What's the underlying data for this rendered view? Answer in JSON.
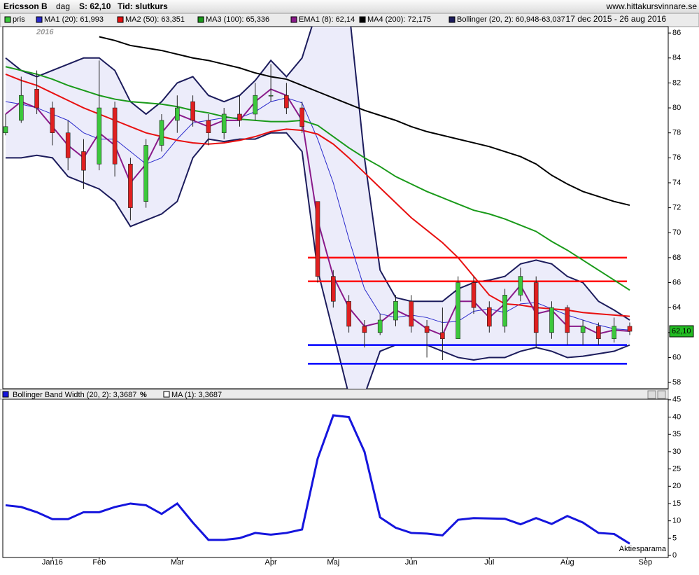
{
  "header": {
    "title": "Ericsson B",
    "period": "dag",
    "last": "S: 62,10",
    "price_type": "Tid: slutkurs",
    "date_range": "17 dec 2015 - 26 aug 2016",
    "source": "www.hittakursvinnare.se",
    "year_label": "2016"
  },
  "chart_data": [
    {
      "type": "candlestick",
      "categories": [
        null,
        null,
        null,
        "Jan16",
        null,
        null,
        "Feb",
        null,
        null,
        null,
        null,
        "Mar",
        null,
        null,
        null,
        null,
        null,
        "Apr",
        null,
        null,
        null,
        "Maj",
        null,
        null,
        null,
        null,
        "Jun",
        null,
        null,
        null,
        null,
        "Jul",
        null,
        null,
        null,
        null,
        "Aug",
        null,
        null,
        null,
        null,
        "Sep"
      ],
      "candles": {
        "name": "pris",
        "color": "#3cc83c",
        "down_color": "#e02020",
        "open": [
          78.0,
          79,
          81.5,
          80,
          78,
          76.5,
          75.5,
          80,
          75.5,
          72.5,
          77,
          79,
          80.5,
          79,
          78,
          79.5,
          79.5,
          81,
          81,
          80,
          72.5,
          66.5,
          64.5,
          62.5,
          62,
          63,
          64.5,
          62.5,
          62,
          61.5,
          66,
          64,
          62.5,
          65,
          66,
          62,
          64,
          62,
          62.5,
          61.5,
          62.5,
          null
        ],
        "high": [
          79.5,
          82.5,
          83,
          80.5,
          79,
          77.5,
          83.8,
          80.5,
          76,
          77.5,
          79.5,
          81,
          81,
          79.5,
          80,
          81,
          82,
          83.5,
          82,
          80.5,
          72.5,
          67,
          65,
          63,
          63.5,
          65,
          65,
          63,
          64,
          66.5,
          66.5,
          64.5,
          65.5,
          67.2,
          66.5,
          64.5,
          64.2,
          63,
          62.8,
          63.2,
          62.8,
          null
        ],
        "low": [
          77.8,
          78.8,
          79.5,
          77,
          75,
          73.5,
          75,
          74.5,
          71,
          72,
          76.5,
          78,
          78.5,
          77,
          77.5,
          78.5,
          79,
          80.5,
          79.5,
          78,
          66,
          64,
          62,
          60.8,
          61.8,
          62.5,
          62,
          60,
          59.8,
          61.5,
          63.5,
          62,
          62,
          64.5,
          60.8,
          61.5,
          61,
          61,
          61,
          61.2,
          61.8,
          null
        ],
        "close": [
          78.5,
          81,
          80,
          78,
          76,
          75,
          80,
          75.5,
          72,
          77,
          79,
          80,
          79,
          78,
          79.5,
          79,
          81,
          81,
          80,
          78.5,
          66.5,
          64.5,
          62.5,
          62,
          63,
          64.5,
          62.5,
          62,
          61.5,
          66,
          64,
          62.5,
          65,
          66.5,
          62,
          64,
          62,
          62.5,
          61.5,
          62.5,
          62.1,
          null
        ]
      },
      "series": [
        {
          "name": "MA1 (20): 61,993",
          "color": "#2a2acc",
          "values": [
            80.5,
            80.3,
            80.0,
            79.5,
            79,
            78,
            77.5,
            77.5,
            76.5,
            75.5,
            76,
            77.5,
            78.8,
            79,
            79.2,
            79.2,
            79.7,
            80.5,
            80.8,
            80.4,
            77.5,
            74,
            69.5,
            65.5,
            63.5,
            63.2,
            63.4,
            63.2,
            62.8,
            62.9,
            63.7,
            63.9,
            63.6,
            64.3,
            64.4,
            63.9,
            63.4,
            63.0,
            62.6,
            62.3,
            62.2,
            null
          ]
        },
        {
          "name": "MA2 (50): 63,351",
          "color": "#e81010",
          "values": [
            82.7,
            82.2,
            81.8,
            81.2,
            80.6,
            80.0,
            79.5,
            79.0,
            78.5,
            78.0,
            77.7,
            77.4,
            77.2,
            77.1,
            77.2,
            77.4,
            77.7,
            78.1,
            78.3,
            78.2,
            77.9,
            77.1,
            76.0,
            74.8,
            73.6,
            72.4,
            71.2,
            70.2,
            69.2,
            68.0,
            66.5,
            65.0,
            64.3,
            64.2,
            64.0,
            63.9,
            63.8,
            63.6,
            63.5,
            63.4,
            63.3,
            null
          ]
        },
        {
          "name": "MA3 (100): 65,336",
          "color": "#1a9a1a",
          "values": [
            83.3,
            83,
            82.7,
            82.3,
            81.8,
            81.4,
            81,
            80.7,
            80.5,
            80.4,
            80.3,
            80.1,
            79.8,
            79.6,
            79.3,
            79.1,
            79.0,
            78.9,
            78.9,
            79.0,
            78.6,
            77.7,
            76.8,
            76.0,
            75.3,
            74.5,
            73.9,
            73.3,
            72.8,
            72.3,
            71.8,
            71.5,
            71.1,
            70.6,
            70.1,
            69.3,
            68.6,
            67.8,
            67.0,
            66.2,
            65.4,
            null
          ]
        },
        {
          "name": "EMA1 (8): 62,14",
          "color": "#8a1a8a",
          "values": [
            79.5,
            80.5,
            80,
            78.5,
            77,
            76,
            78,
            77,
            74,
            75.5,
            78,
            79.5,
            79,
            78.5,
            79,
            79,
            80.5,
            81.5,
            81,
            79,
            71,
            66.5,
            64,
            62.5,
            62.8,
            63.8,
            63.2,
            62.3,
            61.8,
            64.5,
            64.5,
            63.2,
            64.3,
            65.8,
            63.5,
            63.8,
            62.5,
            62.5,
            61.9,
            62.2,
            62.1,
            null
          ]
        },
        {
          "name": "MA4 (200): 72,175",
          "color": "#000000",
          "values": [
            null,
            null,
            null,
            null,
            null,
            null,
            85.7,
            85.4,
            85.0,
            84.8,
            84.6,
            84.3,
            84.0,
            83.8,
            83.5,
            83.2,
            82.8,
            82.5,
            82.3,
            81.8,
            81.3,
            80.8,
            80.3,
            79.8,
            79.4,
            79.0,
            78.5,
            78.1,
            77.8,
            77.5,
            77.2,
            76.9,
            76.5,
            76.1,
            75.5,
            74.6,
            73.9,
            73.3,
            72.9,
            72.5,
            72.2,
            null
          ]
        }
      ],
      "bollinger": {
        "name": "Bollinger (20, 2): 60,948-63,037",
        "color": "#1c1c5c",
        "fill": "#ececfa",
        "upper": [
          84,
          83,
          82.5,
          83,
          83.5,
          84,
          84,
          83,
          80.5,
          79.5,
          80.5,
          82,
          82.5,
          81,
          80.5,
          81,
          82.2,
          83.8,
          82.5,
          84,
          88,
          88,
          88,
          76,
          67,
          64.8,
          64.5,
          64.5,
          64.5,
          65.5,
          66.0,
          66.2,
          66.5,
          67.5,
          67.8,
          67.5,
          66.5,
          66,
          64.5,
          63.8,
          63.0,
          null
        ],
        "lower": [
          76,
          76,
          76.2,
          76,
          74.5,
          74,
          73.5,
          72.5,
          70.5,
          71,
          71.5,
          72.5,
          76,
          77.5,
          77.3,
          77.5,
          77.5,
          78,
          78,
          76.5,
          67,
          62,
          57,
          57,
          60.5,
          61,
          61,
          61,
          60.5,
          60.0,
          59.8,
          60,
          60,
          60.5,
          60.8,
          60.5,
          60,
          60.1,
          60.3,
          60.5,
          61,
          null
        ]
      },
      "levels": [
        {
          "value": 68,
          "color": "#ff0000"
        },
        {
          "value": 66.1,
          "color": "#ff0000"
        },
        {
          "value": 61,
          "color": "#0000ff"
        },
        {
          "value": 59.5,
          "color": "#0000ff"
        }
      ],
      "last_price": {
        "value": 62.1,
        "label": "62,10",
        "color": "#22bb22"
      },
      "ylim": [
        57.5,
        86.4
      ],
      "yticks": [
        58,
        60,
        62,
        64,
        66,
        68,
        70,
        72,
        74,
        76,
        78,
        80,
        82,
        84,
        86
      ],
      "grid": false
    },
    {
      "type": "line",
      "title": "Bollinger Band Width (20, 2): 3,3687",
      "unit": "%",
      "credit": "Aktiesparama",
      "series": [
        {
          "name": "MA (1): 3,3687",
          "color": "#1515dd",
          "values": [
            14.5,
            14,
            12.5,
            10.5,
            10.5,
            12.5,
            12.5,
            14,
            15,
            14.5,
            12,
            15,
            9.5,
            4.5,
            4.5,
            5,
            6.5,
            6,
            6.5,
            7.5,
            28,
            40.5,
            40,
            30,
            11,
            8,
            6.5,
            6.3,
            5.8,
            10.3,
            10.8,
            10.7,
            10.6,
            9,
            10.8,
            9.1,
            11.4,
            9.5,
            6.5,
            6.2,
            3.4,
            null
          ]
        }
      ],
      "ylim": [
        -0.6,
        47.6
      ],
      "yticks": [
        0,
        5,
        10,
        15,
        20,
        25,
        30,
        35,
        40,
        45
      ],
      "grid": false
    }
  ]
}
